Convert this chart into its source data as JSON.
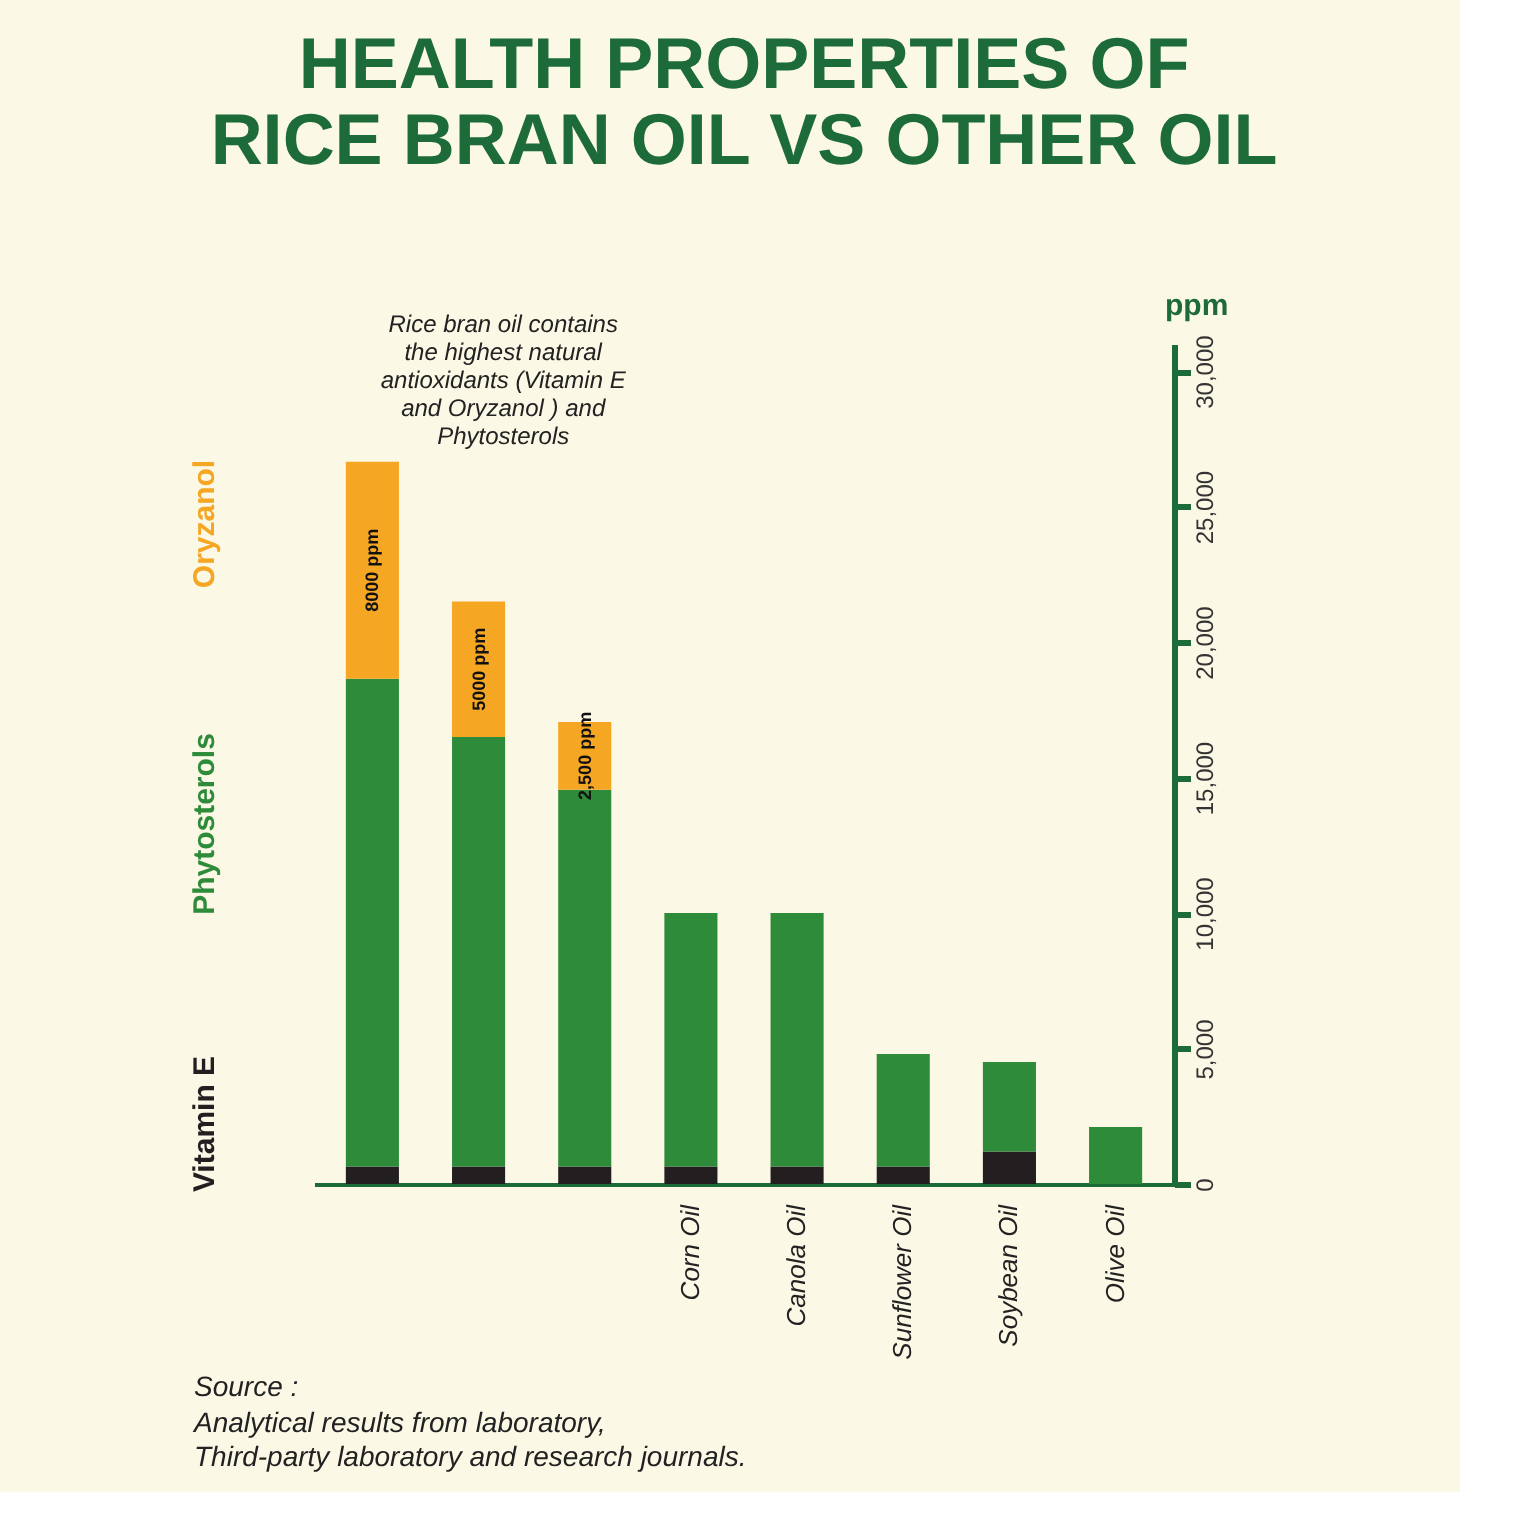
{
  "chart_data": {
    "type": "bar",
    "title": "HEALTH PROPERTIES OF\nRICE BRAN OIL VS OTHER OIL",
    "categories": [
      null,
      null,
      null,
      "Corn Oil",
      "Canola Oil",
      "Sunflower Oil",
      "Soybean Oil",
      "Olive Oil"
    ],
    "stacked": true,
    "series": [
      {
        "name": "Vitamin E",
        "color": "#231f20",
        "values": [
          650,
          650,
          650,
          650,
          650,
          650,
          1200,
          null
        ]
      },
      {
        "name": "Phytosterols",
        "color": "#2e8b3a",
        "values": [
          18000,
          15850,
          13900,
          9350,
          9350,
          4150,
          3300,
          2100
        ]
      },
      {
        "name": "Oryzanol",
        "color": "#f5a623",
        "values": [
          8000,
          5000,
          2500,
          null,
          null,
          null,
          null,
          null
        ],
        "value_labels": [
          "8000 ppm",
          "5000 ppm",
          "2,500 ppm",
          null,
          null,
          null,
          null,
          null
        ]
      }
    ],
    "ylabel": "ppm",
    "ylim": [
      0,
      31000
    ],
    "yticks": [
      0,
      {
        "value": 5000,
        "label": "5,000"
      },
      {
        "value": 10000,
        "label": "10,000"
      },
      {
        "value": 15000,
        "label": "15,000"
      },
      {
        "value": 20000,
        "label": "20,000"
      },
      {
        "value": 25000,
        "label": "25,000"
      },
      {
        "value": 30000,
        "label": "30,000"
      }
    ],
    "grid": false,
    "legend": "left",
    "annotations": [
      "Rice bran oil contains\nthe highest natural\nantioxidants (Vitamin E\nand Oryzanol ) and\nPhytosterols",
      "Source :",
      "Analytical results from laboratory,\nThird-party laboratory and research journals."
    ]
  }
}
